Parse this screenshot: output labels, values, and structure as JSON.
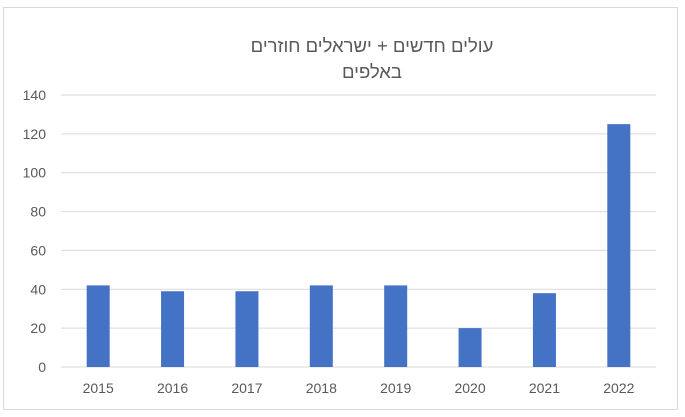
{
  "chart_data": {
    "type": "bar",
    "title_lines": [
      "עולים חדשים + ישראלים חוזרים",
      "באלפים"
    ],
    "categories": [
      "2015",
      "2016",
      "2017",
      "2018",
      "2019",
      "2020",
      "2021",
      "2022"
    ],
    "values": [
      42,
      39,
      39,
      42,
      42,
      20,
      38,
      125
    ],
    "ylim": [
      0,
      140
    ],
    "yticks": [
      0,
      20,
      40,
      60,
      80,
      100,
      120,
      140
    ],
    "grid": true,
    "bar_color": "#4472C4",
    "grid_color": "#d9d9d9",
    "text_color": "#595959"
  }
}
